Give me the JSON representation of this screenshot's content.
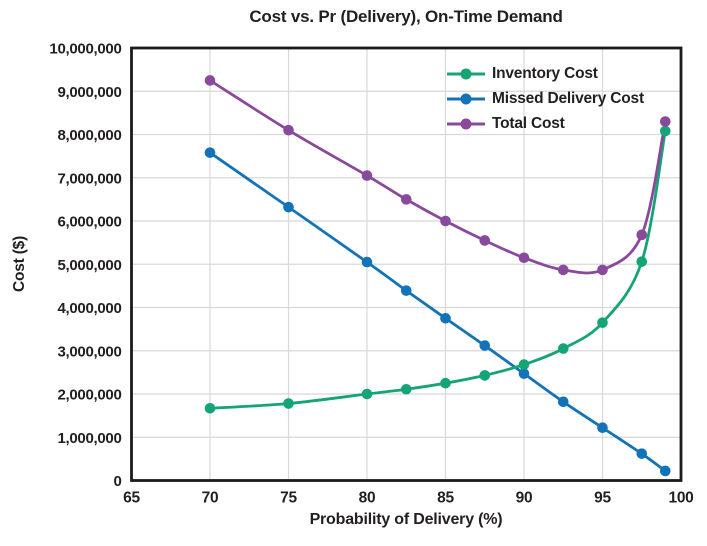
{
  "chart_data": {
    "type": "line",
    "title": "Cost vs. Pr (Delivery), On-Time Demand",
    "xlabel": "Probability of Delivery (%)",
    "ylabel": "Cost ($)",
    "xlim": [
      65,
      100
    ],
    "ylim": [
      0,
      10000000
    ],
    "grid": true,
    "legend_position": "upper-right-inside",
    "x_ticks": [
      65,
      70,
      75,
      80,
      85,
      90,
      95,
      100
    ],
    "x_tick_labels": [
      "65",
      "70",
      "75",
      "80",
      "85",
      "90",
      "95",
      "100"
    ],
    "y_ticks": [
      0,
      1000000,
      2000000,
      3000000,
      4000000,
      5000000,
      6000000,
      7000000,
      8000000,
      9000000,
      10000000
    ],
    "y_tick_labels": [
      "0",
      "1,000,000",
      "2,000,000",
      "3,000,000",
      "4,000,000",
      "5,000,000",
      "6,000,000",
      "7,000,000",
      "8,000,000",
      "9,000,000",
      "10,000,000"
    ],
    "x": [
      70,
      75,
      80,
      82.5,
      85,
      87.5,
      90,
      92.5,
      95,
      97.5,
      99
    ],
    "series": [
      {
        "name": "Inventory Cost",
        "color": "#14a476",
        "values": [
          1670000,
          1780000,
          2000000,
          2110000,
          2250000,
          2430000,
          2680000,
          3050000,
          3650000,
          5060000,
          8080000
        ]
      },
      {
        "name": "Missed Delivery Cost",
        "color": "#1273b8",
        "values": [
          7580000,
          6320000,
          5050000,
          4390000,
          3750000,
          3120000,
          2470000,
          1820000,
          1220000,
          620000,
          220000
        ]
      },
      {
        "name": "Total Cost",
        "color": "#8a4a9b",
        "values": [
          9250000,
          8100000,
          7050000,
          6500000,
          6000000,
          5550000,
          5150000,
          4870000,
          4870000,
          5680000,
          8300000
        ]
      }
    ],
    "style": {
      "text_color": "#231f20",
      "grid_color": "#d8d8d8",
      "border_color": "#1b1b1b",
      "background": "#ffffff"
    }
  }
}
